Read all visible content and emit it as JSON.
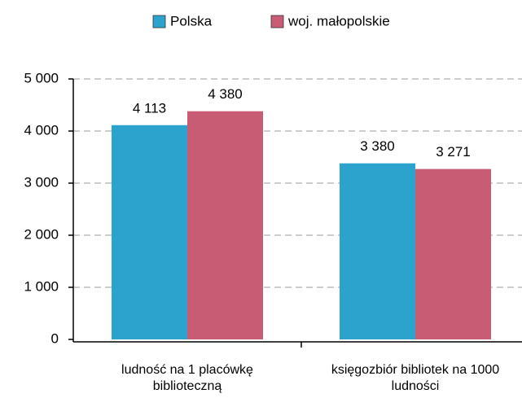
{
  "chart_data": {
    "type": "bar",
    "categories": [
      "ludność na 1 placówkę biblioteczną",
      "księgozbiór bibliotek na 1000 ludności"
    ],
    "series": [
      {
        "name": "Polska",
        "color": "#2ba3cc",
        "values": [
          4113,
          3380
        ],
        "value_labels": [
          "4 113",
          "3 380"
        ]
      },
      {
        "name": "woj. małopolskie",
        "color": "#c95c75",
        "values": [
          4380,
          3271
        ],
        "value_labels": [
          "4 380",
          "3 271"
        ]
      }
    ],
    "ylim": [
      0,
      5000
    ],
    "yticks": [
      0,
      {
        "value": 1000,
        "label": "1 000"
      },
      {
        "value": 2000,
        "label": "2 000"
      },
      {
        "value": 3000,
        "label": "3 000"
      },
      {
        "value": 4000,
        "label": "4 000"
      },
      {
        "value": 5000,
        "label": "5 000"
      }
    ],
    "grid": true,
    "legend": "top"
  }
}
